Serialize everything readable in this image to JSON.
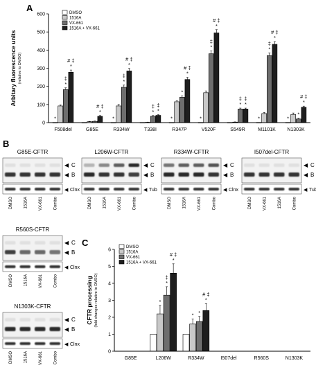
{
  "panels": {
    "a": "A",
    "b": "B",
    "c": "C"
  },
  "colors": {
    "dmso": "#ffffff",
    "c1516a": "#c8c8c8",
    "vx661": "#6e6e6e",
    "combo": "#1e1e1e"
  },
  "chart_data": [
    {
      "type": "bar",
      "panel": "A",
      "ylabel": "Arbitary fluorescence units",
      "ylabel_sub": "(relative to DMSO)",
      "ylim": [
        0,
        600
      ],
      "yticks": [
        0,
        100,
        200,
        300,
        400,
        500,
        600
      ],
      "categories": [
        "F508del",
        "G85E",
        "R334W",
        "T338I",
        "R347P",
        "V520F",
        "S549R",
        "M1101K",
        "N1303K"
      ],
      "legend": [
        "DMSO",
        "1516A",
        "VX-661",
        "1516A + VX-661"
      ],
      "legend_position": "top-left",
      "series": [
        {
          "name": "DMSO",
          "values": [
            1,
            1,
            1,
            1,
            1,
            1,
            1,
            1,
            1
          ],
          "errors": [
            0,
            0,
            0,
            0,
            0,
            0,
            0,
            0,
            0
          ]
        },
        {
          "name": "1516A",
          "values": [
            92,
            5,
            92,
            2,
            115,
            165,
            3,
            50,
            45
          ],
          "errors": [
            6,
            2,
            8,
            1,
            6,
            10,
            1,
            6,
            8
          ]
        },
        {
          "name": "VX-661",
          "values": [
            182,
            7,
            195,
            35,
            140,
            380,
            75,
            370,
            20
          ],
          "errors": [
            10,
            2,
            12,
            4,
            8,
            15,
            5,
            15,
            4
          ]
        },
        {
          "name": "1516A + VX-661",
          "values": [
            278,
            35,
            285,
            40,
            238,
            495,
            75,
            432,
            85
          ],
          "errors": [
            12,
            4,
            14,
            4,
            12,
            18,
            5,
            15,
            6
          ]
        }
      ],
      "annotations": [
        [
          "*",
          "",
          "*",
          "",
          "*",
          "*",
          "",
          "*",
          "*"
        ],
        [
          "",
          "",
          "",
          "",
          "",
          "",
          "",
          "",
          ""
        ],
        [
          "‡\n*",
          "",
          "‡\n*",
          "‡\n*",
          "*",
          "‡\n*",
          "‡\n*",
          "‡\n*",
          "*"
        ],
        [
          "# ‡\n*",
          "# ‡\n*",
          "# ‡\n*",
          "‡\n*",
          "# ‡\n*",
          "# ‡\n*",
          "‡\n*",
          "# ‡\n*",
          "# ‡\n*"
        ]
      ]
    },
    {
      "type": "bar",
      "panel": "C",
      "ylabel": "CFTR processing",
      "ylabel_sub": "(fold changes relative to DMSO)",
      "ylim": [
        0,
        6
      ],
      "yticks": [
        0,
        1,
        2,
        3,
        4,
        5,
        6
      ],
      "categories": [
        "G85E",
        "L206W",
        "R334W",
        "I507del",
        "R560S",
        "N1303K"
      ],
      "legend": [
        "DMSO",
        "1516A",
        "VX-661",
        "1516A + VX-661"
      ],
      "legend_position": "top-left",
      "series": [
        {
          "name": "DMSO",
          "values": [
            0,
            1,
            1,
            0,
            0,
            0
          ],
          "errors": [
            0,
            0,
            0,
            0,
            0,
            0
          ]
        },
        {
          "name": "1516A",
          "values": [
            0,
            2.2,
            1.6,
            0,
            0,
            0
          ],
          "errors": [
            0,
            0.5,
            0.3,
            0,
            0,
            0
          ]
        },
        {
          "name": "VX-661",
          "values": [
            0,
            3.3,
            1.75,
            0,
            0,
            0
          ],
          "errors": [
            0,
            0.5,
            0.3,
            0,
            0,
            0
          ]
        },
        {
          "name": "1516A + VX-661",
          "values": [
            0,
            4.6,
            2.4,
            0,
            0,
            0
          ],
          "errors": [
            0,
            0.55,
            0.4,
            0,
            0,
            0
          ]
        }
      ],
      "annotations": [
        [
          "",
          "",
          "",
          "",
          "",
          ""
        ],
        [
          "",
          "*",
          "*",
          "",
          "",
          ""
        ],
        [
          "",
          "‡\n*",
          "*",
          "",
          "",
          ""
        ],
        [
          "",
          "# ‡\n*",
          "# ‡\n*",
          "",
          "",
          ""
        ]
      ]
    }
  ],
  "blots": [
    {
      "title": "G85E-CFTR",
      "bands": [
        "C",
        "B"
      ],
      "loading": "Clnx",
      "lanes": [
        "DMSO",
        "1516A",
        "VX-661",
        "Combo"
      ],
      "c_int": [
        0.05,
        0.05,
        0.05,
        0.05
      ],
      "b_int": [
        0.85,
        0.85,
        0.85,
        0.85
      ]
    },
    {
      "title": "L206W-CFTR",
      "bands": [
        "C",
        "B"
      ],
      "loading": "Tub",
      "lanes": [
        "DMSO",
        "1516A",
        "VX-661",
        "Combo"
      ],
      "c_int": [
        0.25,
        0.45,
        0.65,
        0.9
      ],
      "b_int": [
        0.9,
        0.85,
        0.85,
        0.8
      ]
    },
    {
      "title": "R334W-CFTR",
      "bands": [
        "C",
        "B"
      ],
      "loading": "Clnx",
      "lanes": [
        "DMSO",
        "1516A",
        "VX-661",
        "Combo"
      ],
      "c_int": [
        0.55,
        0.65,
        0.65,
        0.7
      ],
      "b_int": [
        0.9,
        0.9,
        0.9,
        0.85
      ]
    },
    {
      "title": "I507del-CFTR",
      "bands": [
        "C",
        "B"
      ],
      "loading": "Tub",
      "lanes": [
        "DMSO",
        "VX-661",
        "1516A",
        "Combo"
      ],
      "c_int": [
        0.05,
        0.05,
        0.05,
        0.05
      ],
      "b_int": [
        0.85,
        0.85,
        0.85,
        0.85
      ]
    },
    {
      "title": "R560S-CFTR",
      "bands": [
        "C",
        "B"
      ],
      "loading": "Clnx",
      "lanes": [
        "DMSO",
        "1516A",
        "VX-661",
        "Combo"
      ],
      "c_int": [
        0.05,
        0.05,
        0.05,
        0.05
      ],
      "b_int": [
        0.8,
        0.6,
        0.6,
        0.55
      ]
    },
    {
      "title": "N1303K-CFTR",
      "bands": [
        "C",
        "B"
      ],
      "loading": "Clnx",
      "lanes": [
        "DMSO",
        "1516A",
        "VX-661",
        "Combo"
      ],
      "c_int": [
        0.05,
        0.05,
        0.05,
        0.05
      ],
      "b_int": [
        0.9,
        0.9,
        0.9,
        0.9
      ]
    }
  ]
}
